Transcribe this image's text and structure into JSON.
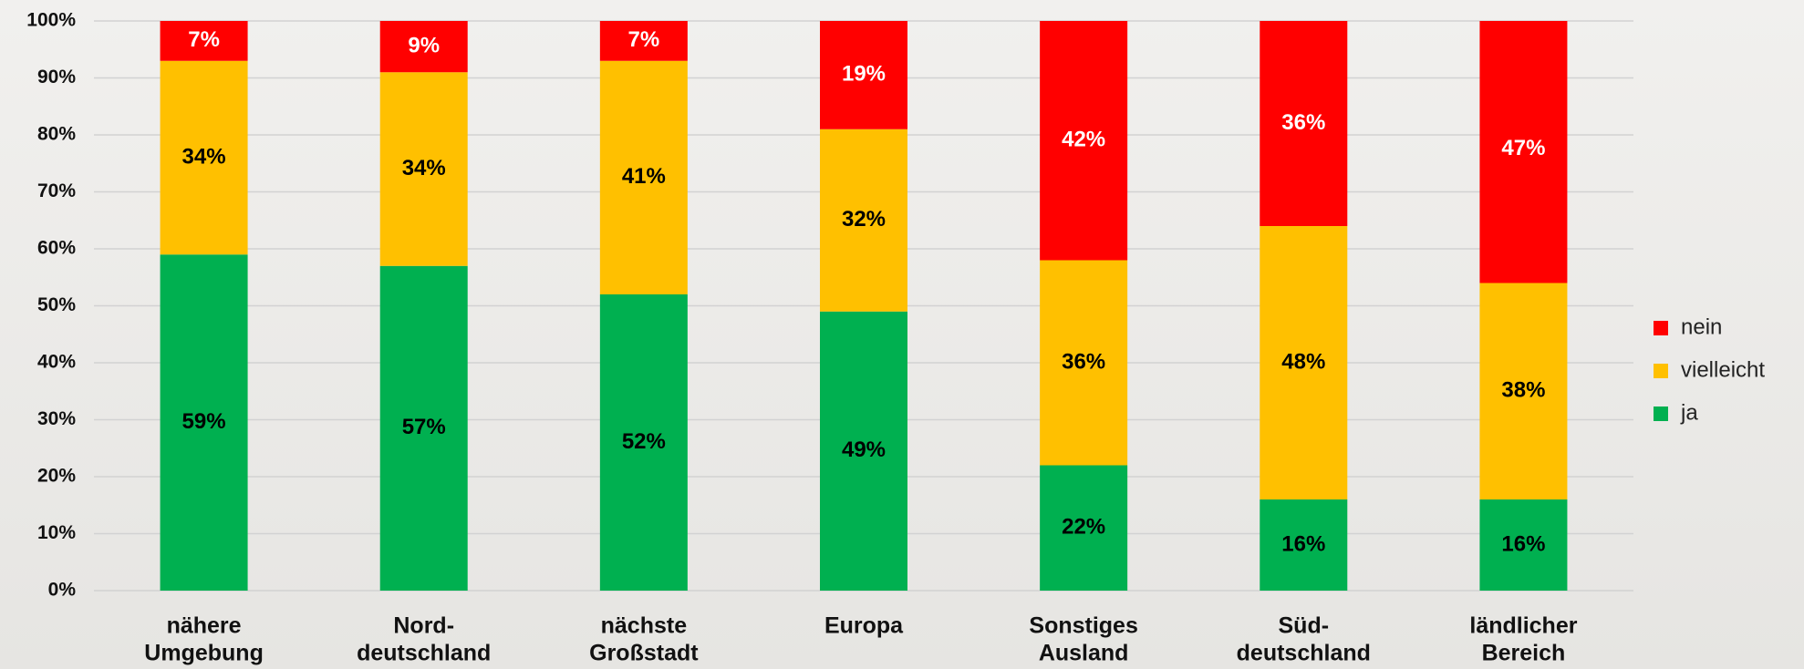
{
  "chart_data": {
    "type": "stacked_bar",
    "categories": [
      [
        "nähere",
        "Umgebung"
      ],
      [
        "Nord-",
        "deutschland"
      ],
      [
        "nächste",
        "Großstadt"
      ],
      [
        "Europa"
      ],
      [
        "Sonstiges",
        "Ausland"
      ],
      [
        "Süd-",
        "deutschland"
      ],
      [
        "ländlicher",
        "Bereich"
      ]
    ],
    "series": [
      {
        "name": "ja",
        "color": "#00b050",
        "label_color": "#000000",
        "values": [
          59,
          57,
          52,
          49,
          22,
          16,
          16
        ],
        "value_labels": [
          "59%",
          "57%",
          "52%",
          "49%",
          "22%",
          "16%",
          "16%"
        ]
      },
      {
        "name": "vielleicht",
        "color": "#ffc000",
        "label_color": "#000000",
        "values": [
          34,
          34,
          41,
          32,
          36,
          48,
          38
        ],
        "value_labels": [
          "34%",
          "34%",
          "41%",
          "32%",
          "36%",
          "48%",
          "38%"
        ]
      },
      {
        "name": "nein",
        "color": "#ff0000",
        "label_color": "#ffffff",
        "values": [
          7,
          9,
          7,
          19,
          42,
          36,
          47
        ],
        "value_labels": [
          "7%",
          "9%",
          "7%",
          "19%",
          "42%",
          "36%",
          "47%"
        ]
      }
    ],
    "ylim": [
      0,
      100
    ],
    "yticks": [
      {
        "value": 0,
        "label": "0%"
      },
      {
        "value": 10,
        "label": "10%"
      },
      {
        "value": 20,
        "label": "20%"
      },
      {
        "value": 30,
        "label": "30%"
      },
      {
        "value": 40,
        "label": "40%"
      },
      {
        "value": 50,
        "label": "50%"
      },
      {
        "value": 60,
        "label": "60%"
      },
      {
        "value": 70,
        "label": "70%"
      },
      {
        "value": 80,
        "label": "80%"
      },
      {
        "value": 90,
        "label": "90%"
      },
      {
        "value": 100,
        "label": "100%"
      }
    ],
    "grid": true,
    "legend": "right"
  }
}
